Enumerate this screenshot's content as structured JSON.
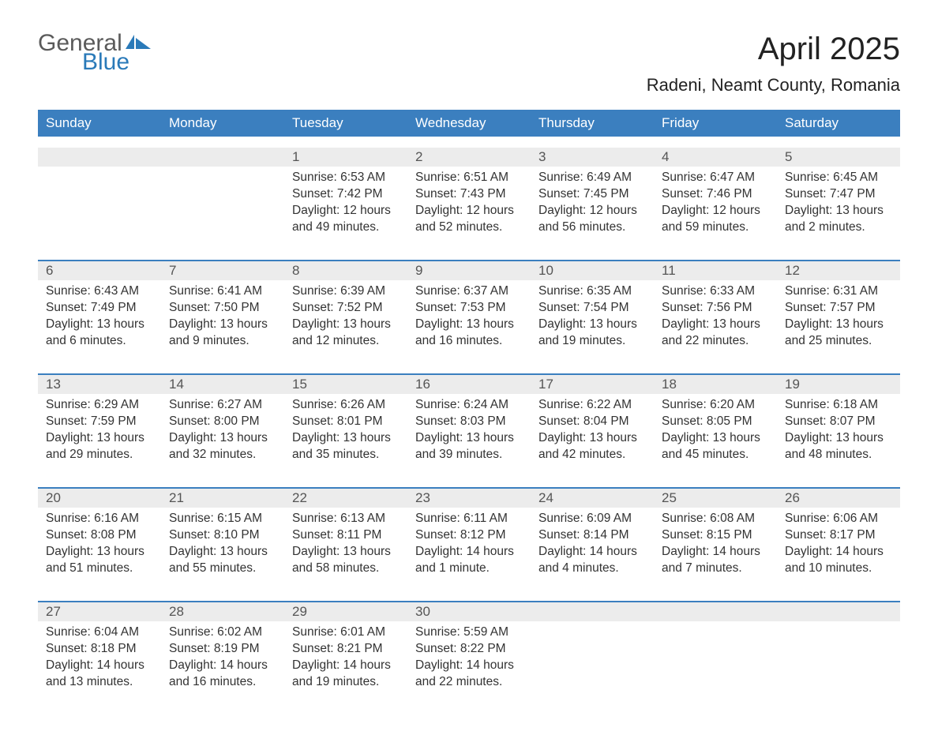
{
  "brand": {
    "part1": "General",
    "part2": "Blue"
  },
  "title": "April 2025",
  "location": "Radeni, Neamt County, Romania",
  "colors": {
    "header_bg": "#3b7fbf",
    "header_text": "#ffffff",
    "daynum_bg": "#ececec",
    "border_top": "#3b7fbf",
    "logo_gray": "#5a5a5a",
    "logo_blue": "#2a7ab9",
    "body_bg": "#ffffff"
  },
  "day_headers": [
    "Sunday",
    "Monday",
    "Tuesday",
    "Wednesday",
    "Thursday",
    "Friday",
    "Saturday"
  ],
  "weeks": [
    {
      "nums": [
        "",
        "",
        "1",
        "2",
        "3",
        "4",
        "5"
      ],
      "cells": [
        {
          "sunrise": "",
          "sunset": "",
          "daylight": ""
        },
        {
          "sunrise": "",
          "sunset": "",
          "daylight": ""
        },
        {
          "sunrise": "Sunrise: 6:53 AM",
          "sunset": "Sunset: 7:42 PM",
          "daylight": "Daylight: 12 hours and 49 minutes."
        },
        {
          "sunrise": "Sunrise: 6:51 AM",
          "sunset": "Sunset: 7:43 PM",
          "daylight": "Daylight: 12 hours and 52 minutes."
        },
        {
          "sunrise": "Sunrise: 6:49 AM",
          "sunset": "Sunset: 7:45 PM",
          "daylight": "Daylight: 12 hours and 56 minutes."
        },
        {
          "sunrise": "Sunrise: 6:47 AM",
          "sunset": "Sunset: 7:46 PM",
          "daylight": "Daylight: 12 hours and 59 minutes."
        },
        {
          "sunrise": "Sunrise: 6:45 AM",
          "sunset": "Sunset: 7:47 PM",
          "daylight": "Daylight: 13 hours and 2 minutes."
        }
      ]
    },
    {
      "nums": [
        "6",
        "7",
        "8",
        "9",
        "10",
        "11",
        "12"
      ],
      "cells": [
        {
          "sunrise": "Sunrise: 6:43 AM",
          "sunset": "Sunset: 7:49 PM",
          "daylight": "Daylight: 13 hours and 6 minutes."
        },
        {
          "sunrise": "Sunrise: 6:41 AM",
          "sunset": "Sunset: 7:50 PM",
          "daylight": "Daylight: 13 hours and 9 minutes."
        },
        {
          "sunrise": "Sunrise: 6:39 AM",
          "sunset": "Sunset: 7:52 PM",
          "daylight": "Daylight: 13 hours and 12 minutes."
        },
        {
          "sunrise": "Sunrise: 6:37 AM",
          "sunset": "Sunset: 7:53 PM",
          "daylight": "Daylight: 13 hours and 16 minutes."
        },
        {
          "sunrise": "Sunrise: 6:35 AM",
          "sunset": "Sunset: 7:54 PM",
          "daylight": "Daylight: 13 hours and 19 minutes."
        },
        {
          "sunrise": "Sunrise: 6:33 AM",
          "sunset": "Sunset: 7:56 PM",
          "daylight": "Daylight: 13 hours and 22 minutes."
        },
        {
          "sunrise": "Sunrise: 6:31 AM",
          "sunset": "Sunset: 7:57 PM",
          "daylight": "Daylight: 13 hours and 25 minutes."
        }
      ]
    },
    {
      "nums": [
        "13",
        "14",
        "15",
        "16",
        "17",
        "18",
        "19"
      ],
      "cells": [
        {
          "sunrise": "Sunrise: 6:29 AM",
          "sunset": "Sunset: 7:59 PM",
          "daylight": "Daylight: 13 hours and 29 minutes."
        },
        {
          "sunrise": "Sunrise: 6:27 AM",
          "sunset": "Sunset: 8:00 PM",
          "daylight": "Daylight: 13 hours and 32 minutes."
        },
        {
          "sunrise": "Sunrise: 6:26 AM",
          "sunset": "Sunset: 8:01 PM",
          "daylight": "Daylight: 13 hours and 35 minutes."
        },
        {
          "sunrise": "Sunrise: 6:24 AM",
          "sunset": "Sunset: 8:03 PM",
          "daylight": "Daylight: 13 hours and 39 minutes."
        },
        {
          "sunrise": "Sunrise: 6:22 AM",
          "sunset": "Sunset: 8:04 PM",
          "daylight": "Daylight: 13 hours and 42 minutes."
        },
        {
          "sunrise": "Sunrise: 6:20 AM",
          "sunset": "Sunset: 8:05 PM",
          "daylight": "Daylight: 13 hours and 45 minutes."
        },
        {
          "sunrise": "Sunrise: 6:18 AM",
          "sunset": "Sunset: 8:07 PM",
          "daylight": "Daylight: 13 hours and 48 minutes."
        }
      ]
    },
    {
      "nums": [
        "20",
        "21",
        "22",
        "23",
        "24",
        "25",
        "26"
      ],
      "cells": [
        {
          "sunrise": "Sunrise: 6:16 AM",
          "sunset": "Sunset: 8:08 PM",
          "daylight": "Daylight: 13 hours and 51 minutes."
        },
        {
          "sunrise": "Sunrise: 6:15 AM",
          "sunset": "Sunset: 8:10 PM",
          "daylight": "Daylight: 13 hours and 55 minutes."
        },
        {
          "sunrise": "Sunrise: 6:13 AM",
          "sunset": "Sunset: 8:11 PM",
          "daylight": "Daylight: 13 hours and 58 minutes."
        },
        {
          "sunrise": "Sunrise: 6:11 AM",
          "sunset": "Sunset: 8:12 PM",
          "daylight": "Daylight: 14 hours and 1 minute."
        },
        {
          "sunrise": "Sunrise: 6:09 AM",
          "sunset": "Sunset: 8:14 PM",
          "daylight": "Daylight: 14 hours and 4 minutes."
        },
        {
          "sunrise": "Sunrise: 6:08 AM",
          "sunset": "Sunset: 8:15 PM",
          "daylight": "Daylight: 14 hours and 7 minutes."
        },
        {
          "sunrise": "Sunrise: 6:06 AM",
          "sunset": "Sunset: 8:17 PM",
          "daylight": "Daylight: 14 hours and 10 minutes."
        }
      ]
    },
    {
      "nums": [
        "27",
        "28",
        "29",
        "30",
        "",
        "",
        ""
      ],
      "cells": [
        {
          "sunrise": "Sunrise: 6:04 AM",
          "sunset": "Sunset: 8:18 PM",
          "daylight": "Daylight: 14 hours and 13 minutes."
        },
        {
          "sunrise": "Sunrise: 6:02 AM",
          "sunset": "Sunset: 8:19 PM",
          "daylight": "Daylight: 14 hours and 16 minutes."
        },
        {
          "sunrise": "Sunrise: 6:01 AM",
          "sunset": "Sunset: 8:21 PM",
          "daylight": "Daylight: 14 hours and 19 minutes."
        },
        {
          "sunrise": "Sunrise: 5:59 AM",
          "sunset": "Sunset: 8:22 PM",
          "daylight": "Daylight: 14 hours and 22 minutes."
        },
        {
          "sunrise": "",
          "sunset": "",
          "daylight": ""
        },
        {
          "sunrise": "",
          "sunset": "",
          "daylight": ""
        },
        {
          "sunrise": "",
          "sunset": "",
          "daylight": ""
        }
      ]
    }
  ]
}
